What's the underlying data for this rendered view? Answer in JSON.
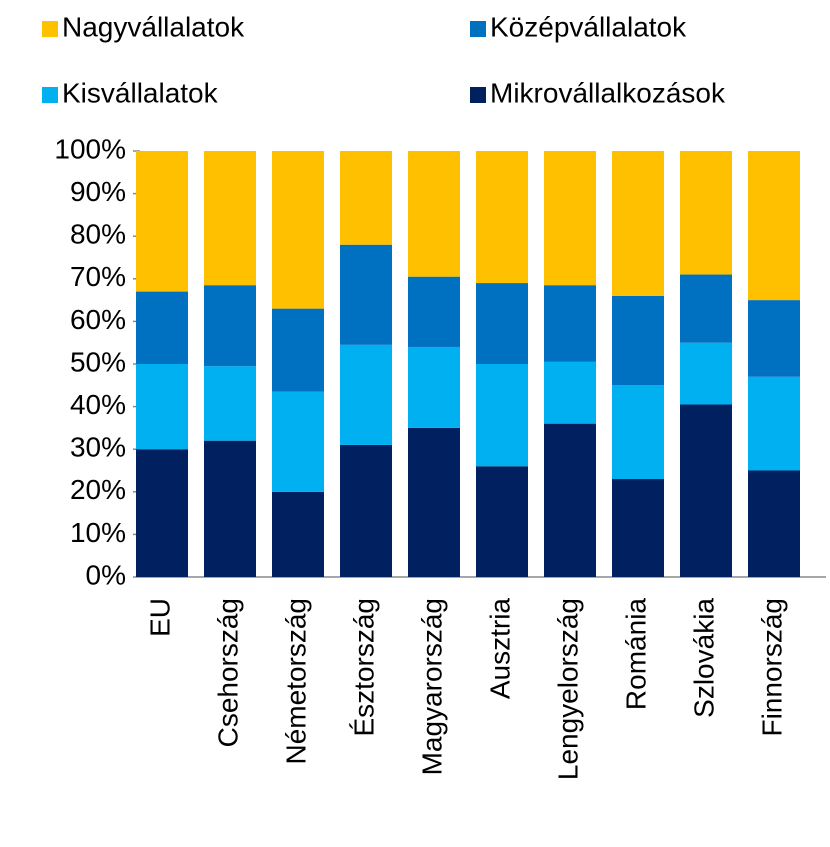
{
  "chart_data": {
    "type": "stacked_bar",
    "categories": [
      "EU",
      "Csehország",
      "Németország",
      "Észtország",
      "Magyarország",
      "Ausztria",
      "Lengyelország",
      "Románia",
      "Szlovákia",
      "Finnország"
    ],
    "series": [
      {
        "name": "Mikrovállalkozások",
        "color": "#002060",
        "values": [
          30,
          32,
          20,
          31,
          35,
          26,
          36,
          23,
          40.5,
          25
        ]
      },
      {
        "name": "Kisvállalatok",
        "color": "#00b0f0",
        "values": [
          20,
          17.5,
          23.5,
          23.5,
          19,
          24,
          14.5,
          22,
          14.5,
          22
        ]
      },
      {
        "name": "Középvállalatok",
        "color": "#0070c0",
        "values": [
          17,
          19,
          19.5,
          23.5,
          16.5,
          19,
          18,
          21,
          16,
          18
        ]
      },
      {
        "name": "Nagyvállalatok",
        "color": "#ffc000",
        "values": [
          33,
          31.5,
          37,
          22,
          29.5,
          31,
          31.5,
          34,
          29,
          35
        ]
      }
    ],
    "ylim": [
      0,
      100
    ],
    "yticks": [
      {
        "value": 0,
        "label": "0%"
      },
      {
        "value": 10,
        "label": "10%"
      },
      {
        "value": 20,
        "label": "20%"
      },
      {
        "value": 30,
        "label": "30%"
      },
      {
        "value": 40,
        "label": "40%"
      },
      {
        "value": 50,
        "label": "50%"
      },
      {
        "value": 60,
        "label": "60%"
      },
      {
        "value": 70,
        "label": "70%"
      },
      {
        "value": 80,
        "label": "80%"
      },
      {
        "value": 90,
        "label": "90%"
      },
      {
        "value": 100,
        "label": "100%"
      }
    ],
    "grid": false
  }
}
